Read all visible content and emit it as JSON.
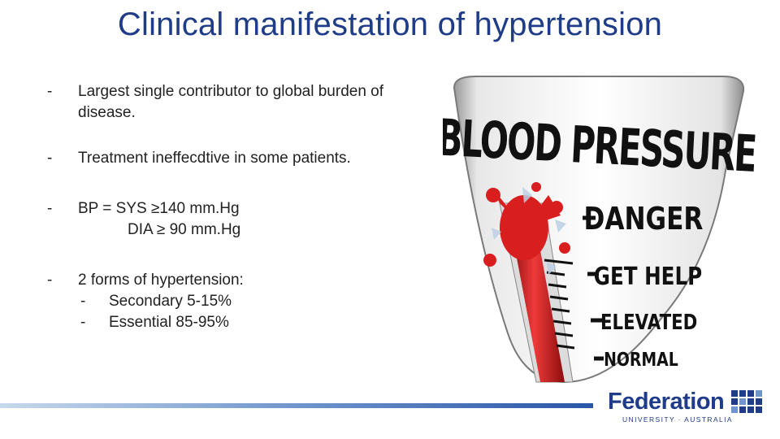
{
  "slide": {
    "title": "Clinical manifestation of hypertension",
    "bullets": [
      {
        "dash": "-",
        "text": "Largest single contributor to global burden of disease."
      },
      {
        "dash": "-",
        "text": "Treatment ineffecdtive in some patients."
      },
      {
        "dash": "-",
        "line1": "BP = SYS ≥140 mm.Hg",
        "line2": "DIA ≥ 90 mm.Hg"
      },
      {
        "dash": "-",
        "text": "2 forms of hypertension:",
        "subs": [
          {
            "dash": "-",
            "text": "Secondary 5-15%"
          },
          {
            "dash": "-",
            "text": "Essential 85-95%"
          }
        ]
      }
    ]
  },
  "illustration": {
    "heading": "BLOOD PRESSURE",
    "levels": [
      "DANGER",
      "GET HELP",
      "ELEVATED",
      "NORMAL"
    ]
  },
  "footer": {
    "logo_name": "Federation",
    "logo_sub": "UNIVERSITY · AUSTRALIA"
  },
  "colors": {
    "title": "#1f3c88",
    "mercury": "#d81e1e",
    "footer_bar_start": "#c8d8ec",
    "footer_bar_end": "#2a56a8"
  }
}
